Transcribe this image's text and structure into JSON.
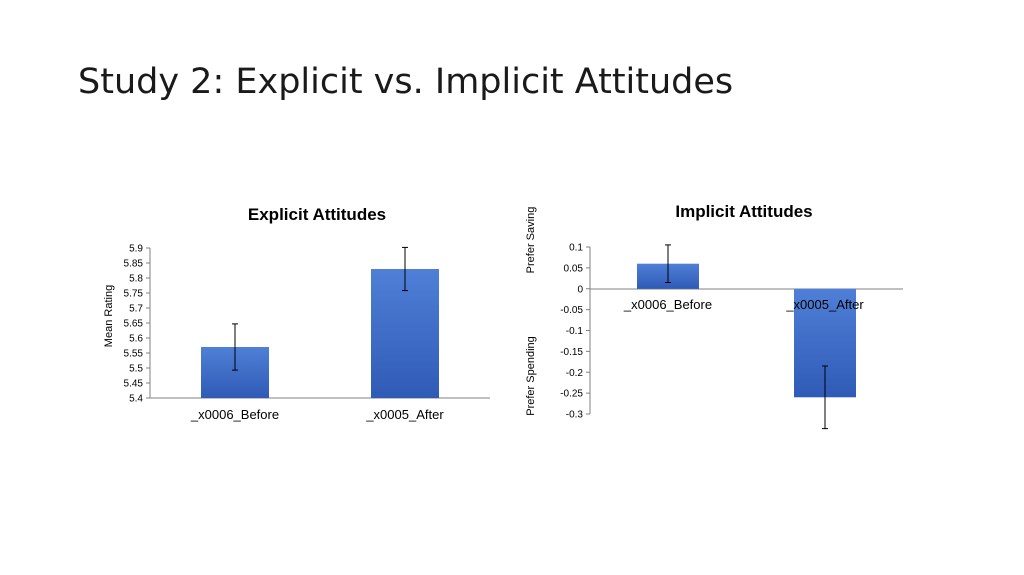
{
  "slide": {
    "title": "Study 2: Explicit vs. Implicit Attitudes"
  },
  "colors": {
    "bar_top": "#4f7fd6",
    "bar_bottom": "#2f5bb7",
    "axis": "#808080"
  },
  "chart_data": [
    {
      "type": "bar",
      "title": "Explicit Attitudes",
      "ylabel": "Mean Rating",
      "xlabel": "",
      "categories": [
        "_x0006_Before",
        "_x0005_After"
      ],
      "values": [
        5.57,
        5.83
      ],
      "error_bars": [
        0.077,
        0.072
      ],
      "ylim": [
        5.4,
        5.9
      ],
      "yticks": [
        "5.4",
        "5.45",
        "5.5",
        "5.55",
        "5.6",
        "5.65",
        "5.7",
        "5.75",
        "5.8",
        "5.85",
        "5.9"
      ],
      "grid": false,
      "legend": "none"
    },
    {
      "type": "bar",
      "title": "Implicit Attitudes",
      "ylabel_top": "Prefer Saving",
      "ylabel_bottom": "Prefer Spending",
      "xlabel": "",
      "categories": [
        "_x0006_Before",
        "_x0005_After"
      ],
      "values": [
        0.06,
        -0.26
      ],
      "error_bars": [
        0.045,
        0.075
      ],
      "ylim": [
        -0.3,
        0.1
      ],
      "yticks": [
        "-0.3",
        "-0.25",
        "-0.2",
        "-0.15",
        "-0.1",
        "-0.05",
        "0",
        "0.05",
        "0.1"
      ],
      "grid": false,
      "legend": "none"
    }
  ]
}
